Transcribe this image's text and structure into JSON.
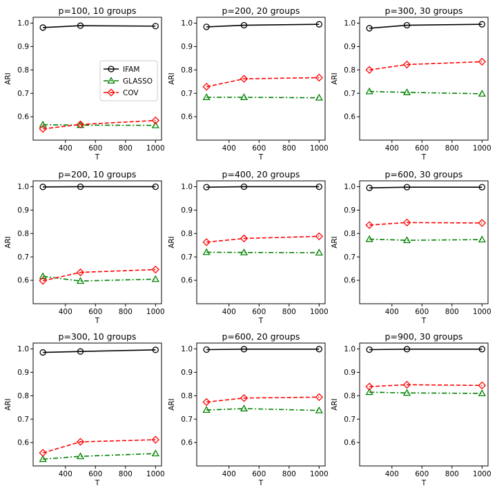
{
  "chart_data": [
    {
      "type": "line",
      "title": "p=100, 10 groups",
      "xlabel": "T",
      "ylabel": "ARI",
      "x": [
        250,
        500,
        1000
      ],
      "xlim": [
        185,
        1040
      ],
      "ylim": [
        0.5,
        1.025
      ],
      "xticks": [
        400,
        600,
        800,
        1000
      ],
      "yticks": [
        0.6,
        0.7,
        0.8,
        0.9,
        1.0
      ],
      "xtick_labels": [
        "400",
        "600",
        "800",
        "1000"
      ],
      "ytick_labels": [
        "0.6",
        "0.7",
        "0.8",
        "0.9",
        "1.0"
      ],
      "legend": "center-right",
      "series": [
        {
          "name": "IFAM",
          "values": [
            0.981,
            0.989,
            0.987
          ]
        },
        {
          "name": "GLASSO",
          "values": [
            0.566,
            0.564,
            0.563
          ]
        },
        {
          "name": "COV",
          "values": [
            0.548,
            0.567,
            0.584
          ]
        }
      ]
    },
    {
      "type": "line",
      "title": "p=200, 20 groups",
      "xlabel": "T",
      "ylabel": "ARI",
      "x": [
        250,
        500,
        1000
      ],
      "xlim": [
        185,
        1040
      ],
      "ylim": [
        0.5,
        1.025
      ],
      "xticks": [
        400,
        600,
        800,
        1000
      ],
      "yticks": [
        0.6,
        0.7,
        0.8,
        0.9,
        1.0
      ],
      "xtick_labels": [
        "400",
        "600",
        "800",
        "1000"
      ],
      "ytick_labels": [
        "0.6",
        "0.7",
        "0.8",
        "0.9",
        "1.0"
      ],
      "series": [
        {
          "name": "IFAM",
          "values": [
            0.984,
            0.991,
            0.995
          ]
        },
        {
          "name": "GLASSO",
          "values": [
            0.683,
            0.683,
            0.681
          ]
        },
        {
          "name": "COV",
          "values": [
            0.728,
            0.762,
            0.767
          ]
        }
      ]
    },
    {
      "type": "line",
      "title": "p=300, 30 groups",
      "xlabel": "T",
      "ylabel": "ARI",
      "x": [
        250,
        500,
        1000
      ],
      "xlim": [
        185,
        1040
      ],
      "ylim": [
        0.5,
        1.025
      ],
      "xticks": [
        400,
        600,
        800,
        1000
      ],
      "yticks": [
        0.6,
        0.7,
        0.8,
        0.9,
        1.0
      ],
      "xtick_labels": [
        "400",
        "600",
        "800",
        "1000"
      ],
      "ytick_labels": [
        "0.6",
        "0.7",
        "0.8",
        "0.9",
        "1.0"
      ],
      "series": [
        {
          "name": "IFAM",
          "values": [
            0.978,
            0.991,
            0.995
          ]
        },
        {
          "name": "GLASSO",
          "values": [
            0.708,
            0.704,
            0.698
          ]
        },
        {
          "name": "COV",
          "values": [
            0.8,
            0.823,
            0.835
          ]
        }
      ]
    },
    {
      "type": "line",
      "title": "p=200, 10 groups",
      "xlabel": "T",
      "ylabel": "ARI",
      "x": [
        250,
        500,
        1000
      ],
      "xlim": [
        185,
        1040
      ],
      "ylim": [
        0.5,
        1.025
      ],
      "xticks": [
        400,
        600,
        800,
        1000
      ],
      "yticks": [
        0.6,
        0.7,
        0.8,
        0.9,
        1.0
      ],
      "xtick_labels": [
        "400",
        "600",
        "800",
        "1000"
      ],
      "ytick_labels": [
        "0.6",
        "0.7",
        "0.8",
        "0.9",
        "1.0"
      ],
      "series": [
        {
          "name": "IFAM",
          "values": [
            0.999,
            1.0,
            1.0
          ]
        },
        {
          "name": "GLASSO",
          "values": [
            0.617,
            0.597,
            0.605
          ]
        },
        {
          "name": "COV",
          "values": [
            0.598,
            0.634,
            0.646
          ]
        }
      ]
    },
    {
      "type": "line",
      "title": "p=400, 20 groups",
      "xlabel": "T",
      "ylabel": "ARI",
      "x": [
        250,
        500,
        1000
      ],
      "xlim": [
        185,
        1040
      ],
      "ylim": [
        0.5,
        1.025
      ],
      "xticks": [
        400,
        600,
        800,
        1000
      ],
      "yticks": [
        0.6,
        0.7,
        0.8,
        0.9,
        1.0
      ],
      "xtick_labels": [
        "400",
        "600",
        "800",
        "1000"
      ],
      "ytick_labels": [
        "0.6",
        "0.7",
        "0.8",
        "0.9",
        "1.0"
      ],
      "series": [
        {
          "name": "IFAM",
          "values": [
            0.998,
            1.0,
            1.0
          ]
        },
        {
          "name": "GLASSO",
          "values": [
            0.72,
            0.719,
            0.718
          ]
        },
        {
          "name": "COV",
          "values": [
            0.763,
            0.779,
            0.788
          ]
        }
      ]
    },
    {
      "type": "line",
      "title": "p=600, 30 groups",
      "xlabel": "T",
      "ylabel": "ARI",
      "x": [
        250,
        500,
        1000
      ],
      "xlim": [
        185,
        1040
      ],
      "ylim": [
        0.5,
        1.025
      ],
      "xticks": [
        400,
        600,
        800,
        1000
      ],
      "yticks": [
        0.6,
        0.7,
        0.8,
        0.9,
        1.0
      ],
      "xtick_labels": [
        "400",
        "600",
        "800",
        "1000"
      ],
      "ytick_labels": [
        "0.6",
        "0.7",
        "0.8",
        "0.9",
        "1.0"
      ],
      "series": [
        {
          "name": "IFAM",
          "values": [
            0.995,
            0.998,
            0.998
          ]
        },
        {
          "name": "GLASSO",
          "values": [
            0.776,
            0.771,
            0.774
          ]
        },
        {
          "name": "COV",
          "values": [
            0.836,
            0.847,
            0.845
          ]
        }
      ]
    },
    {
      "type": "line",
      "title": "p=300, 10 groups",
      "xlabel": "T",
      "ylabel": "ARI",
      "x": [
        250,
        500,
        1000
      ],
      "xlim": [
        185,
        1040
      ],
      "ylim": [
        0.5,
        1.025
      ],
      "xticks": [
        400,
        600,
        800,
        1000
      ],
      "yticks": [
        0.6,
        0.7,
        0.8,
        0.9,
        1.0
      ],
      "xtick_labels": [
        "400",
        "600",
        "800",
        "1000"
      ],
      "ytick_labels": [
        "0.6",
        "0.7",
        "0.8",
        "0.9",
        "1.0"
      ],
      "series": [
        {
          "name": "IFAM",
          "values": [
            0.985,
            0.989,
            0.996
          ]
        },
        {
          "name": "GLASSO",
          "values": [
            0.529,
            0.541,
            0.553
          ]
        },
        {
          "name": "COV",
          "values": [
            0.556,
            0.603,
            0.612
          ]
        }
      ]
    },
    {
      "type": "line",
      "title": "p=600, 20 groups",
      "xlabel": "T",
      "ylabel": "ARI",
      "x": [
        250,
        500,
        1000
      ],
      "xlim": [
        185,
        1040
      ],
      "ylim": [
        0.5,
        1.025
      ],
      "xticks": [
        400,
        600,
        800,
        1000
      ],
      "yticks": [
        0.6,
        0.7,
        0.8,
        0.9,
        1.0
      ],
      "xtick_labels": [
        "400",
        "600",
        "800",
        "1000"
      ],
      "ytick_labels": [
        "0.6",
        "0.7",
        "0.8",
        "0.9",
        "1.0"
      ],
      "series": [
        {
          "name": "IFAM",
          "values": [
            0.997,
            0.999,
            0.999
          ]
        },
        {
          "name": "GLASSO",
          "values": [
            0.739,
            0.745,
            0.737
          ]
        },
        {
          "name": "COV",
          "values": [
            0.773,
            0.79,
            0.794
          ]
        }
      ]
    },
    {
      "type": "line",
      "title": "p=900, 30 groups",
      "xlabel": "T",
      "ylabel": "ARI",
      "x": [
        250,
        500,
        1000
      ],
      "xlim": [
        185,
        1040
      ],
      "ylim": [
        0.5,
        1.025
      ],
      "xticks": [
        400,
        600,
        800,
        1000
      ],
      "yticks": [
        0.6,
        0.7,
        0.8,
        0.9,
        1.0
      ],
      "xtick_labels": [
        "400",
        "600",
        "800",
        "1000"
      ],
      "ytick_labels": [
        "0.6",
        "0.7",
        "0.8",
        "0.9",
        "1.0"
      ],
      "series": [
        {
          "name": "IFAM",
          "values": [
            0.997,
            0.999,
            0.999
          ]
        },
        {
          "name": "GLASSO",
          "values": [
            0.815,
            0.812,
            0.81
          ]
        },
        {
          "name": "COV",
          "values": [
            0.839,
            0.847,
            0.844
          ]
        }
      ]
    }
  ],
  "series_style": {
    "IFAM": {
      "color": "#000000",
      "marker": "circle",
      "dash": "solid"
    },
    "GLASSO": {
      "color": "#008000",
      "marker": "triangle",
      "dash": "dashdot"
    },
    "COV": {
      "color": "#ff0000",
      "marker": "diamond",
      "dash": "dashed"
    }
  }
}
